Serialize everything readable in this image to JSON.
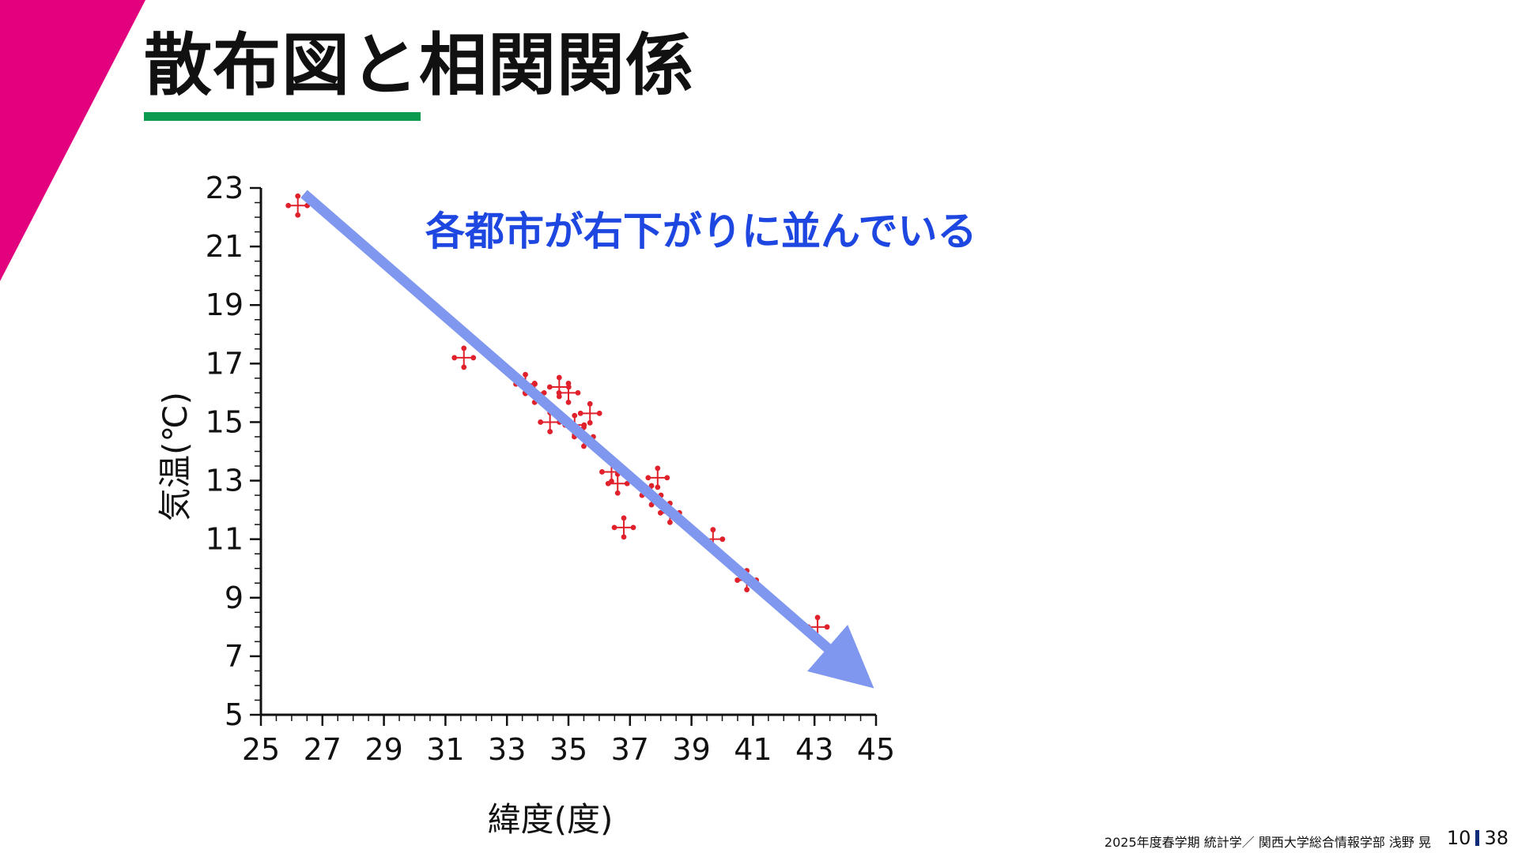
{
  "slide": {
    "title": "散布図と相関関係",
    "footer": "2025年度春学期  統計学／  関西大学総合情報学部  浅野  晃",
    "page_current": "10",
    "page_total": "38"
  },
  "colors": {
    "corner": "#e2007e",
    "underline": "#0c9a4e",
    "points": "#e0202a",
    "trend_arrow": "#7f97ee",
    "annotation": "#1d47e0"
  },
  "chart_data": {
    "type": "scatter",
    "xlabel": "緯度(度)",
    "ylabel": "気温(℃)",
    "xlim": [
      25,
      45
    ],
    "ylim": [
      5,
      23
    ],
    "xticks": [
      25,
      27,
      29,
      31,
      33,
      35,
      37,
      39,
      41,
      43,
      45
    ],
    "yticks": [
      5,
      7,
      9,
      11,
      13,
      15,
      17,
      19,
      21,
      23
    ],
    "annotation": "各都市が右下がりに並んでいる",
    "trend_arrow": {
      "from": [
        26.4,
        22.8
      ],
      "to": [
        44.5,
        6.3
      ]
    },
    "points": [
      {
        "x": 26.2,
        "y": 22.4
      },
      {
        "x": 31.6,
        "y": 17.2
      },
      {
        "x": 33.6,
        "y": 16.3
      },
      {
        "x": 33.9,
        "y": 16.0
      },
      {
        "x": 34.7,
        "y": 16.2
      },
      {
        "x": 35.0,
        "y": 16.0
      },
      {
        "x": 35.7,
        "y": 15.3
      },
      {
        "x": 34.4,
        "y": 15.0
      },
      {
        "x": 35.2,
        "y": 14.9
      },
      {
        "x": 35.5,
        "y": 14.5
      },
      {
        "x": 36.4,
        "y": 13.3
      },
      {
        "x": 36.6,
        "y": 12.9
      },
      {
        "x": 37.9,
        "y": 13.1
      },
      {
        "x": 37.7,
        "y": 12.5
      },
      {
        "x": 38.3,
        "y": 11.9
      },
      {
        "x": 36.8,
        "y": 11.4
      },
      {
        "x": 39.7,
        "y": 11.0
      },
      {
        "x": 40.8,
        "y": 9.6
      },
      {
        "x": 43.1,
        "y": 8.0
      }
    ]
  }
}
